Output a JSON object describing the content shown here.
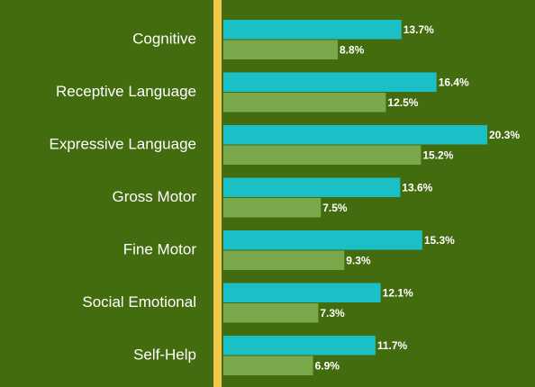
{
  "chart_data": {
    "type": "hbar",
    "categories": [
      "Cognitive",
      "Receptive Language",
      "Expressive Language",
      "Gross Motor",
      "Fine Motor",
      "Social Emotional",
      "Self-Help"
    ],
    "series": [
      {
        "color": "#1bbfc6",
        "values": [
          13.7,
          16.4,
          20.3,
          13.6,
          15.3,
          12.1,
          11.7
        ],
        "value_labels": [
          "13.7%",
          "16.4%",
          "20.3%",
          "13.6%",
          "15.3%",
          "12.1%",
          "11.7%"
        ]
      },
      {
        "color": "#7aa84a",
        "values": [
          8.8,
          12.5,
          15.2,
          7.5,
          9.3,
          7.3,
          6.9
        ],
        "value_labels": [
          "8.8%",
          "12.5%",
          "15.2%",
          "7.5%",
          "9.3%",
          "7.3%",
          "6.9%"
        ]
      }
    ],
    "axis_color": "#f2c84b"
  }
}
